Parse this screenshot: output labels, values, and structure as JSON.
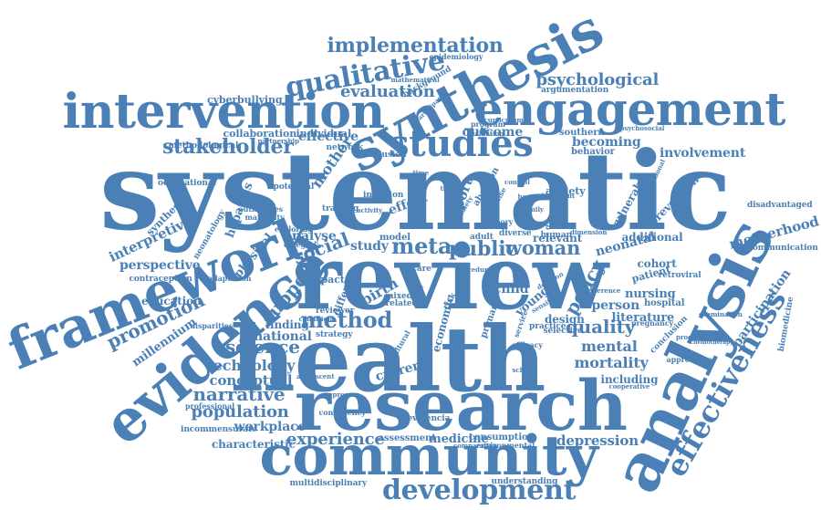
{
  "color": "#4a80b5",
  "words": [
    "systematic",
    "review",
    "health",
    "research",
    "analysis",
    "community",
    "evidence",
    "framework",
    "synthesis",
    "intervention",
    "engagement",
    "studies",
    "development",
    "qualitative",
    "implementation",
    "effectiveness",
    "stakeholder",
    "method",
    "meta",
    "public",
    "woman",
    "evaluation",
    "psychological",
    "promotion",
    "social",
    "support",
    "science",
    "narrative",
    "population",
    "experience",
    "quality",
    "policy",
    "mental",
    "mortality",
    "technology",
    "conceptual",
    "national",
    "interpretive",
    "perspective",
    "motherhood",
    "participation",
    "involvement",
    "becoming",
    "outcome",
    "effective",
    "effect",
    "neonatal",
    "person",
    "literature",
    "cohort",
    "nursing",
    "child",
    "birth",
    "report",
    "current",
    "finding",
    "workplace",
    "characteristic",
    "millennium",
    "education",
    "hepatitis",
    "physical",
    "mother",
    "depression",
    "medicine",
    "assessment",
    "consumption",
    "economic",
    "communication",
    "biomedicine",
    "disadvantaged",
    "prevention",
    "vulnerable",
    "hospital",
    "patient",
    "design",
    "including",
    "additional",
    "relevant",
    "adult",
    "study",
    "analyse",
    "cyberbullying",
    "collaboration",
    "individual",
    "methodological",
    "syntheses",
    "contraception",
    "incommensurate",
    "multidisciplinary",
    "understanding",
    "argumentation",
    "epidemiology",
    "background",
    "human",
    "southern",
    "behavior",
    "anxiety",
    "young",
    "mixed",
    "related",
    "different",
    "impact",
    "care",
    "model",
    "practice",
    "diverse",
    "primary",
    "infection",
    "network",
    "inclusion",
    "strategy",
    "potential",
    "occupational",
    "training",
    "adaptation",
    "disparities",
    "professional",
    "cultural",
    "environmental",
    "selective",
    "evidencia",
    "consistency",
    "retroviral",
    "conclusion",
    "examination",
    "pregnancy",
    "approaches",
    "cooperative",
    "progression",
    "comparative",
    "chemotherapy",
    "maternity",
    "authorities",
    "neonatology",
    "category",
    "exploring",
    "reviewer",
    "sensitive",
    "partnership",
    "mathematical",
    "participant",
    "curriculum",
    "program",
    "evaluation",
    "psychosocial",
    "computational",
    "dimension",
    "efficacy",
    "theory",
    "adolescent",
    "adherence",
    "database",
    "document",
    "school",
    "activity",
    "risk",
    "procedure",
    "service",
    "abortion",
    "trust",
    "response",
    "family",
    "condition",
    "process",
    "time",
    "life",
    "hospital",
    "safety",
    "control",
    "decision"
  ]
}
